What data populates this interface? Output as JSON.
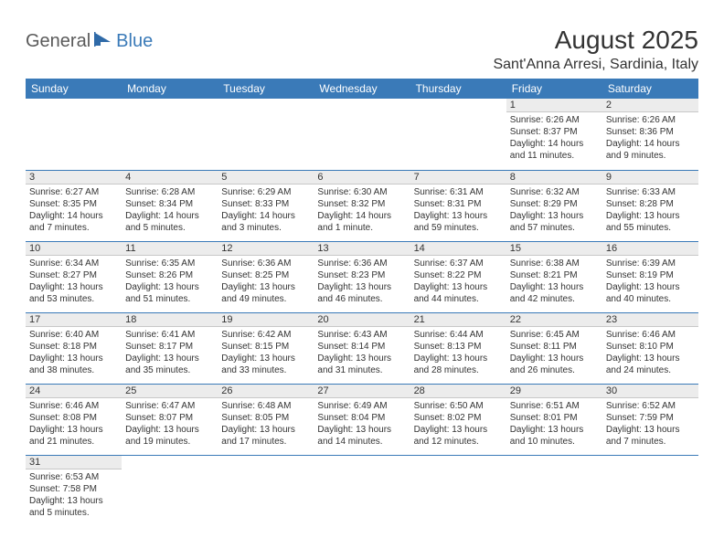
{
  "brand": {
    "general": "General",
    "blue": "Blue"
  },
  "title": "August 2025",
  "location": "Sant'Anna Arresi, Sardinia, Italy",
  "colors": {
    "header_bg": "#3a7ab8",
    "header_text": "#ffffff",
    "daynum_bg": "#ececec",
    "border": "#3a7ab8",
    "text": "#333333",
    "logo_gray": "#5a5a5a",
    "logo_blue": "#3a7ab8"
  },
  "dayHeaders": [
    "Sunday",
    "Monday",
    "Tuesday",
    "Wednesday",
    "Thursday",
    "Friday",
    "Saturday"
  ],
  "weeks": [
    [
      null,
      null,
      null,
      null,
      null,
      {
        "n": "1",
        "sr": "6:26 AM",
        "ss": "8:37 PM",
        "dl": "14 hours and 11 minutes."
      },
      {
        "n": "2",
        "sr": "6:26 AM",
        "ss": "8:36 PM",
        "dl": "14 hours and 9 minutes."
      }
    ],
    [
      {
        "n": "3",
        "sr": "6:27 AM",
        "ss": "8:35 PM",
        "dl": "14 hours and 7 minutes."
      },
      {
        "n": "4",
        "sr": "6:28 AM",
        "ss": "8:34 PM",
        "dl": "14 hours and 5 minutes."
      },
      {
        "n": "5",
        "sr": "6:29 AM",
        "ss": "8:33 PM",
        "dl": "14 hours and 3 minutes."
      },
      {
        "n": "6",
        "sr": "6:30 AM",
        "ss": "8:32 PM",
        "dl": "14 hours and 1 minute."
      },
      {
        "n": "7",
        "sr": "6:31 AM",
        "ss": "8:31 PM",
        "dl": "13 hours and 59 minutes."
      },
      {
        "n": "8",
        "sr": "6:32 AM",
        "ss": "8:29 PM",
        "dl": "13 hours and 57 minutes."
      },
      {
        "n": "9",
        "sr": "6:33 AM",
        "ss": "8:28 PM",
        "dl": "13 hours and 55 minutes."
      }
    ],
    [
      {
        "n": "10",
        "sr": "6:34 AM",
        "ss": "8:27 PM",
        "dl": "13 hours and 53 minutes."
      },
      {
        "n": "11",
        "sr": "6:35 AM",
        "ss": "8:26 PM",
        "dl": "13 hours and 51 minutes."
      },
      {
        "n": "12",
        "sr": "6:36 AM",
        "ss": "8:25 PM",
        "dl": "13 hours and 49 minutes."
      },
      {
        "n": "13",
        "sr": "6:36 AM",
        "ss": "8:23 PM",
        "dl": "13 hours and 46 minutes."
      },
      {
        "n": "14",
        "sr": "6:37 AM",
        "ss": "8:22 PM",
        "dl": "13 hours and 44 minutes."
      },
      {
        "n": "15",
        "sr": "6:38 AM",
        "ss": "8:21 PM",
        "dl": "13 hours and 42 minutes."
      },
      {
        "n": "16",
        "sr": "6:39 AM",
        "ss": "8:19 PM",
        "dl": "13 hours and 40 minutes."
      }
    ],
    [
      {
        "n": "17",
        "sr": "6:40 AM",
        "ss": "8:18 PM",
        "dl": "13 hours and 38 minutes."
      },
      {
        "n": "18",
        "sr": "6:41 AM",
        "ss": "8:17 PM",
        "dl": "13 hours and 35 minutes."
      },
      {
        "n": "19",
        "sr": "6:42 AM",
        "ss": "8:15 PM",
        "dl": "13 hours and 33 minutes."
      },
      {
        "n": "20",
        "sr": "6:43 AM",
        "ss": "8:14 PM",
        "dl": "13 hours and 31 minutes."
      },
      {
        "n": "21",
        "sr": "6:44 AM",
        "ss": "8:13 PM",
        "dl": "13 hours and 28 minutes."
      },
      {
        "n": "22",
        "sr": "6:45 AM",
        "ss": "8:11 PM",
        "dl": "13 hours and 26 minutes."
      },
      {
        "n": "23",
        "sr": "6:46 AM",
        "ss": "8:10 PM",
        "dl": "13 hours and 24 minutes."
      }
    ],
    [
      {
        "n": "24",
        "sr": "6:46 AM",
        "ss": "8:08 PM",
        "dl": "13 hours and 21 minutes."
      },
      {
        "n": "25",
        "sr": "6:47 AM",
        "ss": "8:07 PM",
        "dl": "13 hours and 19 minutes."
      },
      {
        "n": "26",
        "sr": "6:48 AM",
        "ss": "8:05 PM",
        "dl": "13 hours and 17 minutes."
      },
      {
        "n": "27",
        "sr": "6:49 AM",
        "ss": "8:04 PM",
        "dl": "13 hours and 14 minutes."
      },
      {
        "n": "28",
        "sr": "6:50 AM",
        "ss": "8:02 PM",
        "dl": "13 hours and 12 minutes."
      },
      {
        "n": "29",
        "sr": "6:51 AM",
        "ss": "8:01 PM",
        "dl": "13 hours and 10 minutes."
      },
      {
        "n": "30",
        "sr": "6:52 AM",
        "ss": "7:59 PM",
        "dl": "13 hours and 7 minutes."
      }
    ],
    [
      {
        "n": "31",
        "sr": "6:53 AM",
        "ss": "7:58 PM",
        "dl": "13 hours and 5 minutes."
      },
      null,
      null,
      null,
      null,
      null,
      null
    ]
  ],
  "labels": {
    "sunrise": "Sunrise: ",
    "sunset": "Sunset: ",
    "daylight": "Daylight: "
  }
}
